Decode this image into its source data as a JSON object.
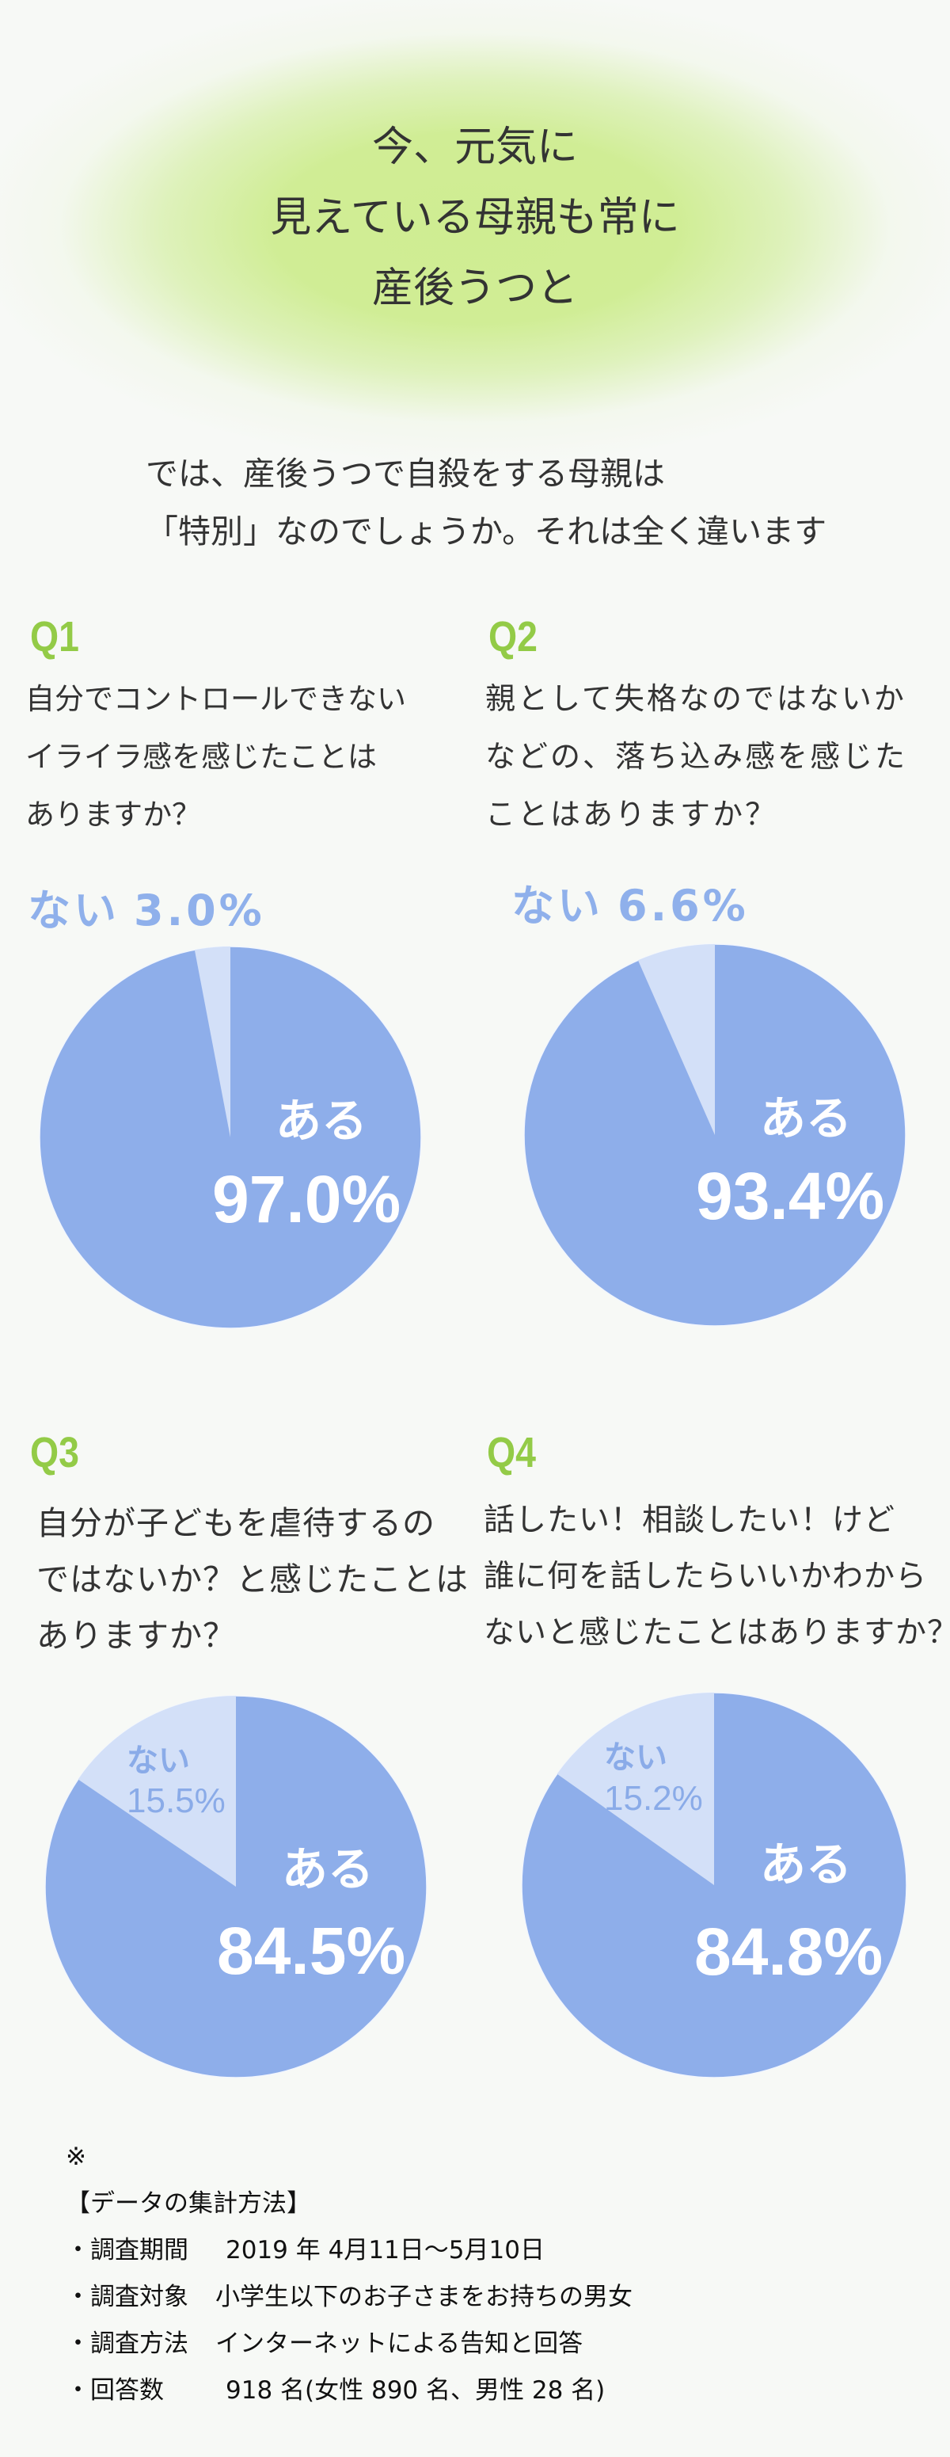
{
  "header": {
    "title_lines": [
      "今、元気に",
      "見えている母親も常に",
      "産後うつと"
    ]
  },
  "intro": {
    "lines": [
      "では、産後うつで自殺をする母親は",
      "「特別」なのでしょうか。それは全く違います"
    ]
  },
  "questions": [
    {
      "label": "Q1",
      "text_lines": [
        "自分でコントロールできない",
        "イライラ感を感じたことは",
        "ありますか？"
      ],
      "result": {
        "yes_label": "ある",
        "yes_value": "97.0%",
        "no_label": "ない",
        "no_value": "3.0%"
      }
    },
    {
      "label": "Q2",
      "text_lines": [
        "親として失格なのではないか",
        "などの、落ち込み感を感じた",
        "ことはありますか？"
      ],
      "result": {
        "yes_label": "ある",
        "yes_value": "93.4%",
        "no_label": "ない",
        "no_value": "6.6%"
      }
    },
    {
      "label": "Q3",
      "text_lines": [
        "自分が子どもを虐待するの",
        "ではないか？と感じたことは",
        "ありますか？"
      ],
      "result": {
        "yes_label": "ある",
        "yes_value": "84.5%",
        "no_label": "ない",
        "no_value": "15.5%"
      }
    },
    {
      "label": "Q4",
      "text_lines": [
        "話したい！相談したい！けど",
        "誰に何を話したらいいかわから",
        "ないと感じたことはありますか？"
      ],
      "result": {
        "yes_label": "ある",
        "yes_value": "84.8%",
        "no_label": "ない",
        "no_value": "15.2%"
      }
    }
  ],
  "footnote": {
    "mark": "※",
    "heading": "【データの集計方法】",
    "rows": [
      {
        "key": "・調査期間",
        "value": "2019 年 4月11日〜5月10日"
      },
      {
        "key": "・調査対象",
        "value": "小学生以下のお子さまをお持ちの男女"
      },
      {
        "key": "・調査方法",
        "value": "インターネットによる告知と回答"
      },
      {
        "key": "・回答数",
        "value": "918 名(女性 890 名、男性 28 名)"
      }
    ]
  },
  "colors": {
    "background": "#f7f9f6",
    "title_glow": "#cfed92",
    "question_label": "#93cb47",
    "body_text": "#333333",
    "pie_yes": "#8eaeea",
    "pie_no": "#d3e0f8",
    "pie_label_light": "#8fb0eb"
  },
  "chart_data": [
    {
      "type": "pie",
      "title": "Q1 自分でコントロールできないイライラ感を感じたことはありますか？",
      "categories": [
        "ある",
        "ない"
      ],
      "values": [
        97.0,
        3.0
      ],
      "unit": "%",
      "colors": [
        "#8eaeea",
        "#d3e0f8"
      ],
      "start_angle": "12 o'clock, 'ない' slice counterclockwise"
    },
    {
      "type": "pie",
      "title": "Q2 親として失格なのではないかなどの、落ち込み感を感じたことはありますか？",
      "categories": [
        "ある",
        "ない"
      ],
      "values": [
        93.4,
        6.6
      ],
      "unit": "%",
      "colors": [
        "#8eaeea",
        "#d3e0f8"
      ],
      "start_angle": "12 o'clock, 'ない' slice counterclockwise"
    },
    {
      "type": "pie",
      "title": "Q3 自分が子どもを虐待するのではないか？と感じたことはありますか？",
      "categories": [
        "ある",
        "ない"
      ],
      "values": [
        84.5,
        15.5
      ],
      "unit": "%",
      "colors": [
        "#8eaeea",
        "#d3e0f8"
      ],
      "start_angle": "12 o'clock, 'ない' slice counterclockwise"
    },
    {
      "type": "pie",
      "title": "Q4 話したい！相談したい！けど誰に何を話したらいいかわからないと感じたことはありますか？",
      "categories": [
        "ある",
        "ない"
      ],
      "values": [
        84.8,
        15.2
      ],
      "unit": "%",
      "colors": [
        "#8eaeea",
        "#d3e0f8"
      ],
      "start_angle": "12 o'clock, 'ない' slice counterclockwise"
    }
  ]
}
